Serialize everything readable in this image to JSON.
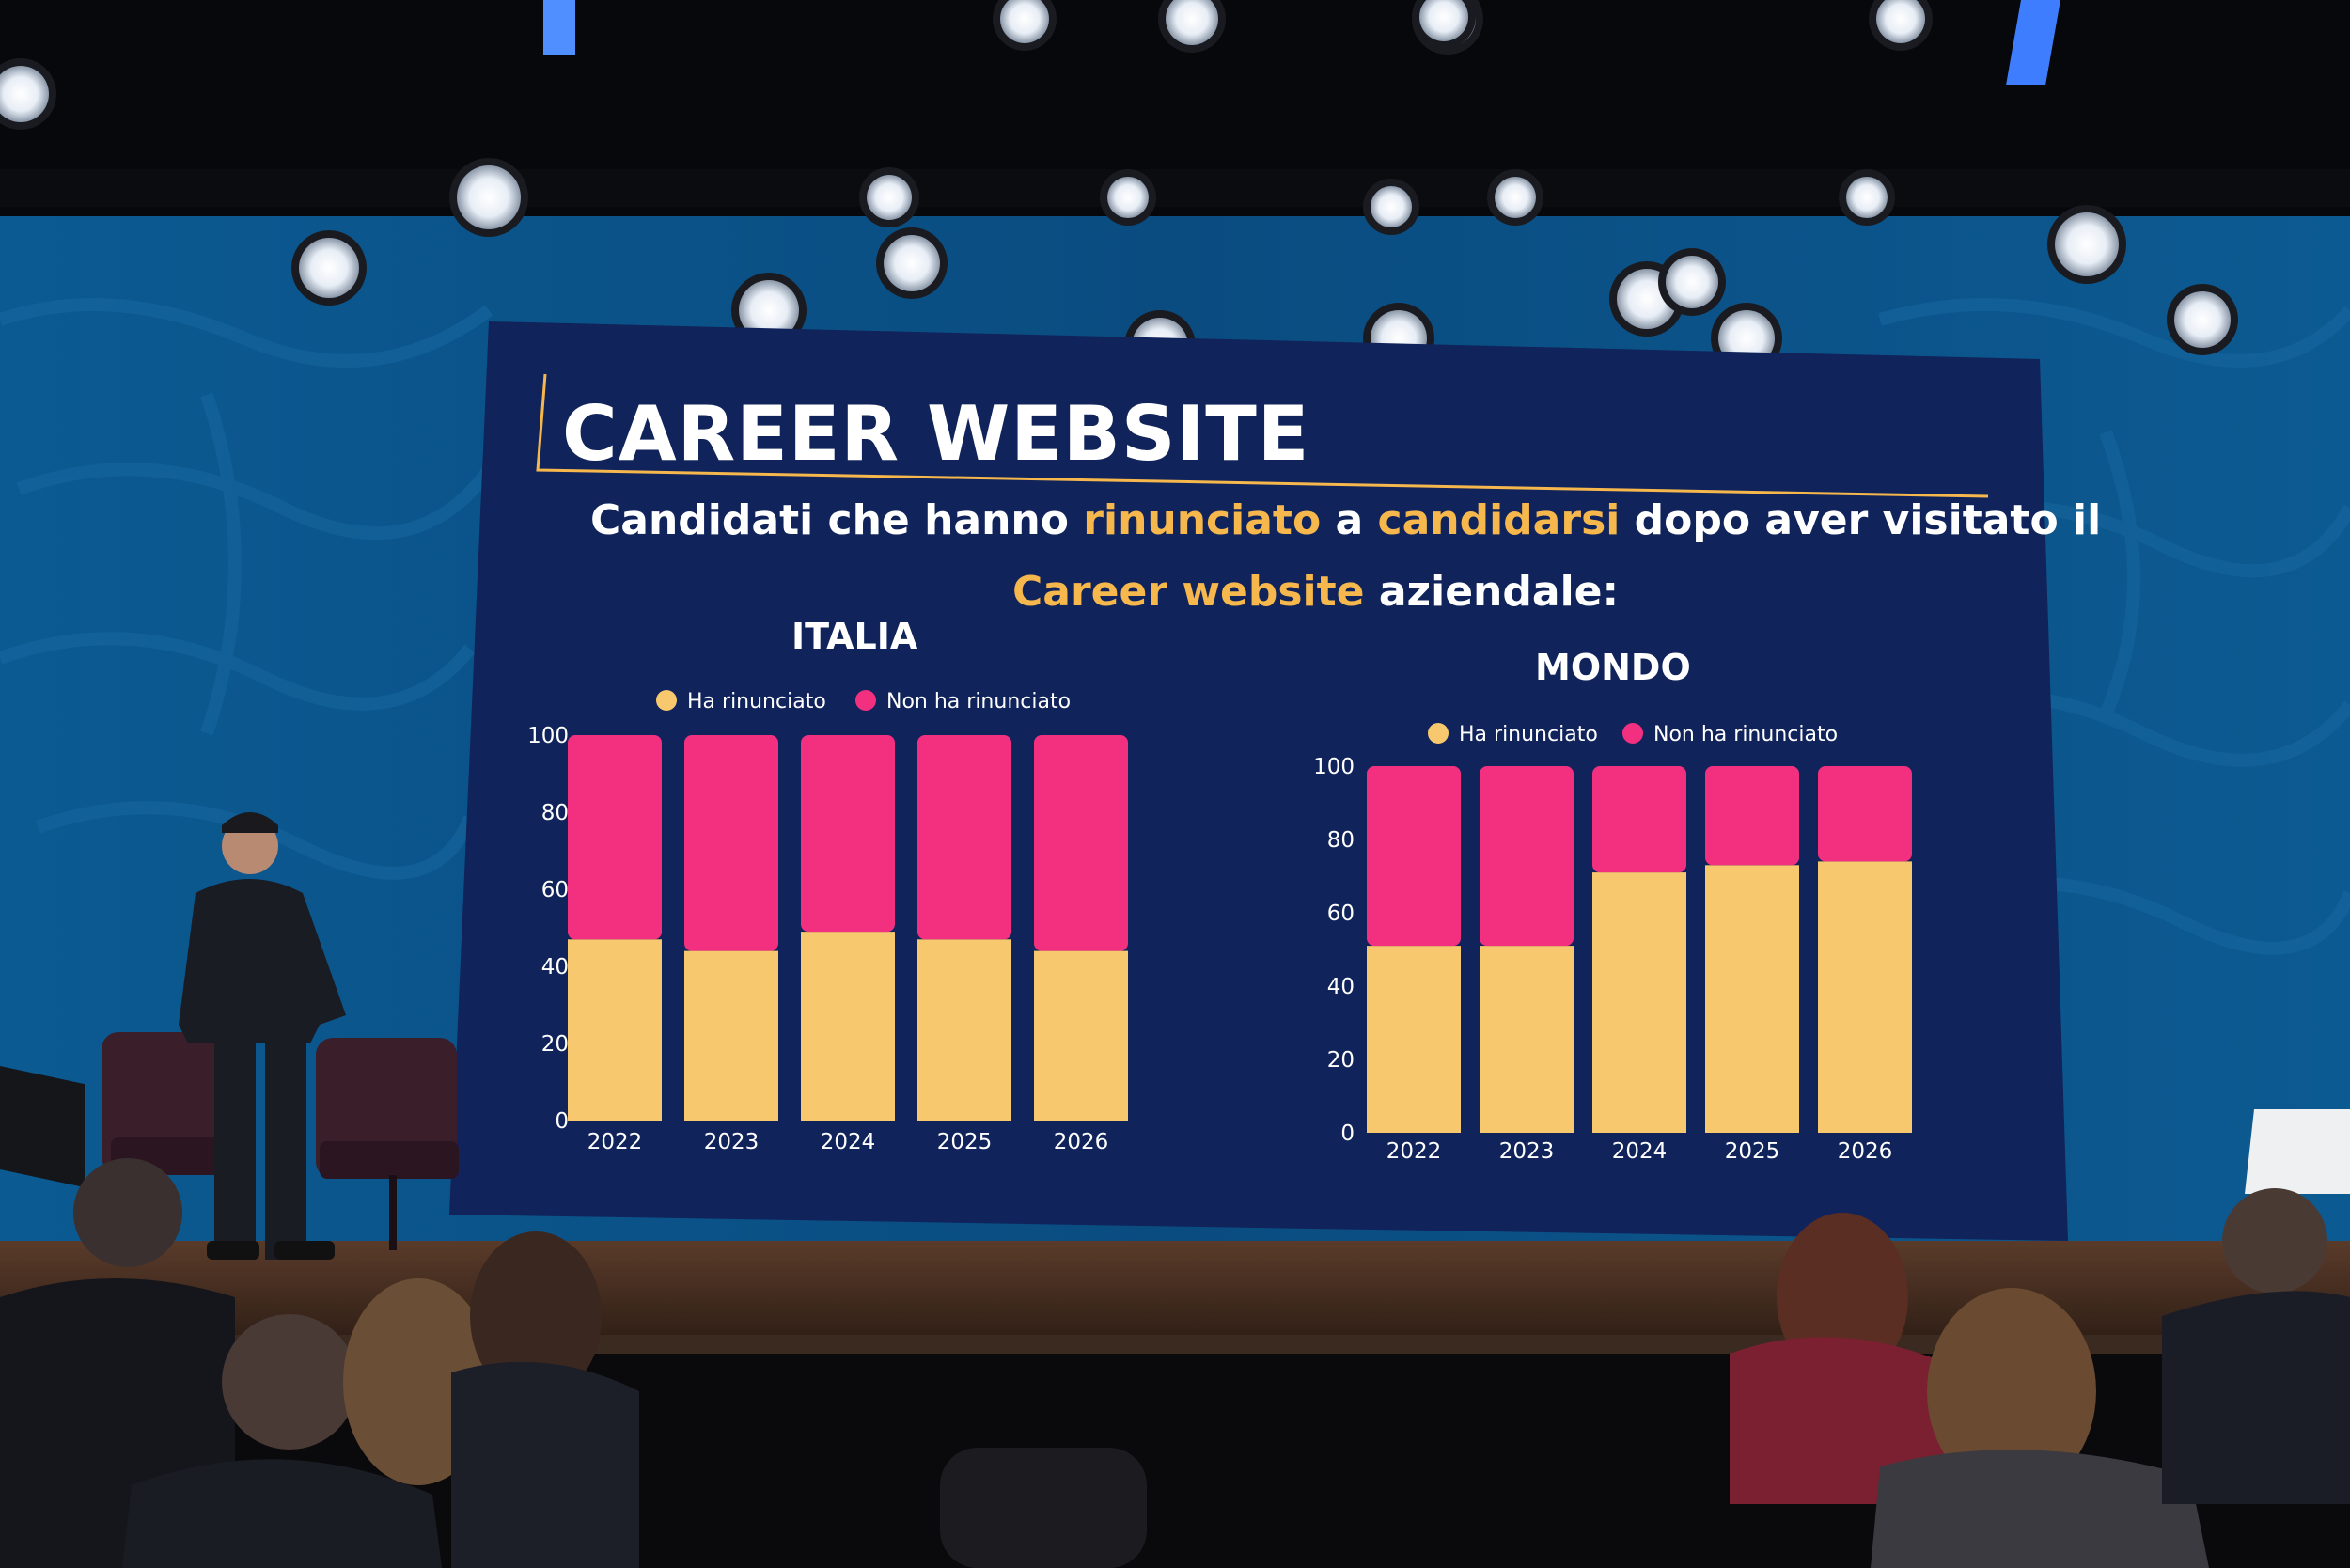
{
  "colors": {
    "screen": "#10235a",
    "wall": "#0d4f86",
    "accent": "#f6b74d",
    "ha_rinunciato": "#f8c86e",
    "non_ha_rinunciato": "#f3307f",
    "text": "#ffffff"
  },
  "slide": {
    "title": "CAREER WEBSITE",
    "subtitle": {
      "part1": "Candidati che hanno ",
      "hl1": "rinunciato",
      "part2": " a ",
      "hl2": "candidarsi",
      "part3": " dopo aver visitato il",
      "hl3": "Career website",
      "part4": " aziendale:"
    }
  },
  "chart_data": [
    {
      "type": "bar",
      "stacked": true,
      "title": "ITALIA",
      "categories": [
        "2022",
        "2023",
        "2024",
        "2025",
        "2026"
      ],
      "series": [
        {
          "name": "Ha rinunciato",
          "values": [
            47,
            44,
            49,
            47,
            44
          ]
        },
        {
          "name": "Non ha rinunciato",
          "values": [
            53,
            56,
            51,
            53,
            56
          ]
        }
      ],
      "yticks": [
        0,
        20,
        40,
        60,
        80,
        100
      ],
      "ylim": [
        0,
        100
      ],
      "legend": "top",
      "grid": false
    },
    {
      "type": "bar",
      "stacked": true,
      "title": "MONDO",
      "categories": [
        "2022",
        "2023",
        "2024",
        "2025",
        "2026"
      ],
      "series": [
        {
          "name": "Ha rinunciato",
          "values": [
            51,
            51,
            71,
            73,
            74
          ]
        },
        {
          "name": "Non ha rinunciato",
          "values": [
            49,
            49,
            29,
            27,
            26
          ]
        }
      ],
      "yticks": [
        0,
        20,
        40,
        60,
        80,
        100
      ],
      "ylim": [
        0,
        100
      ],
      "legend": "top",
      "grid": false
    }
  ]
}
